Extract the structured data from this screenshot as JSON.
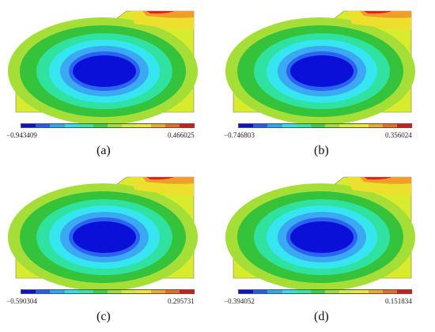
{
  "panels": [
    {
      "caption": "(a)",
      "min": "−0.943409",
      "max": "0.466025"
    },
    {
      "caption": "(b)",
      "min": "−0.746803",
      "max": "0.356024"
    },
    {
      "caption": "(c)",
      "min": "−0.590304",
      "max": "0.295731"
    },
    {
      "caption": "(d)",
      "min": "−0.394052",
      "max": "0.151834"
    }
  ],
  "colormap": [
    "#0a10d8",
    "#1f5cf0",
    "#2aa6f4",
    "#29e0ee",
    "#2ee6a4",
    "#33d13a",
    "#9ae034",
    "#ccef30",
    "#f1e72a",
    "#f0a825",
    "#e86b1e",
    "#d81a17"
  ],
  "region_colors": {
    "deep_blue": "#0a10d8",
    "blue": "#2a63f0",
    "light_blue": "#3aa8f2",
    "cyan": "#37e3ef",
    "aqua_green": "#2fe29f",
    "green": "#33c83a",
    "lime": "#8ad53a",
    "yellow_green": "#c6e83a",
    "yellow": "#ecdf2e",
    "orange": "#f19d2a",
    "red": "#d8281c"
  }
}
